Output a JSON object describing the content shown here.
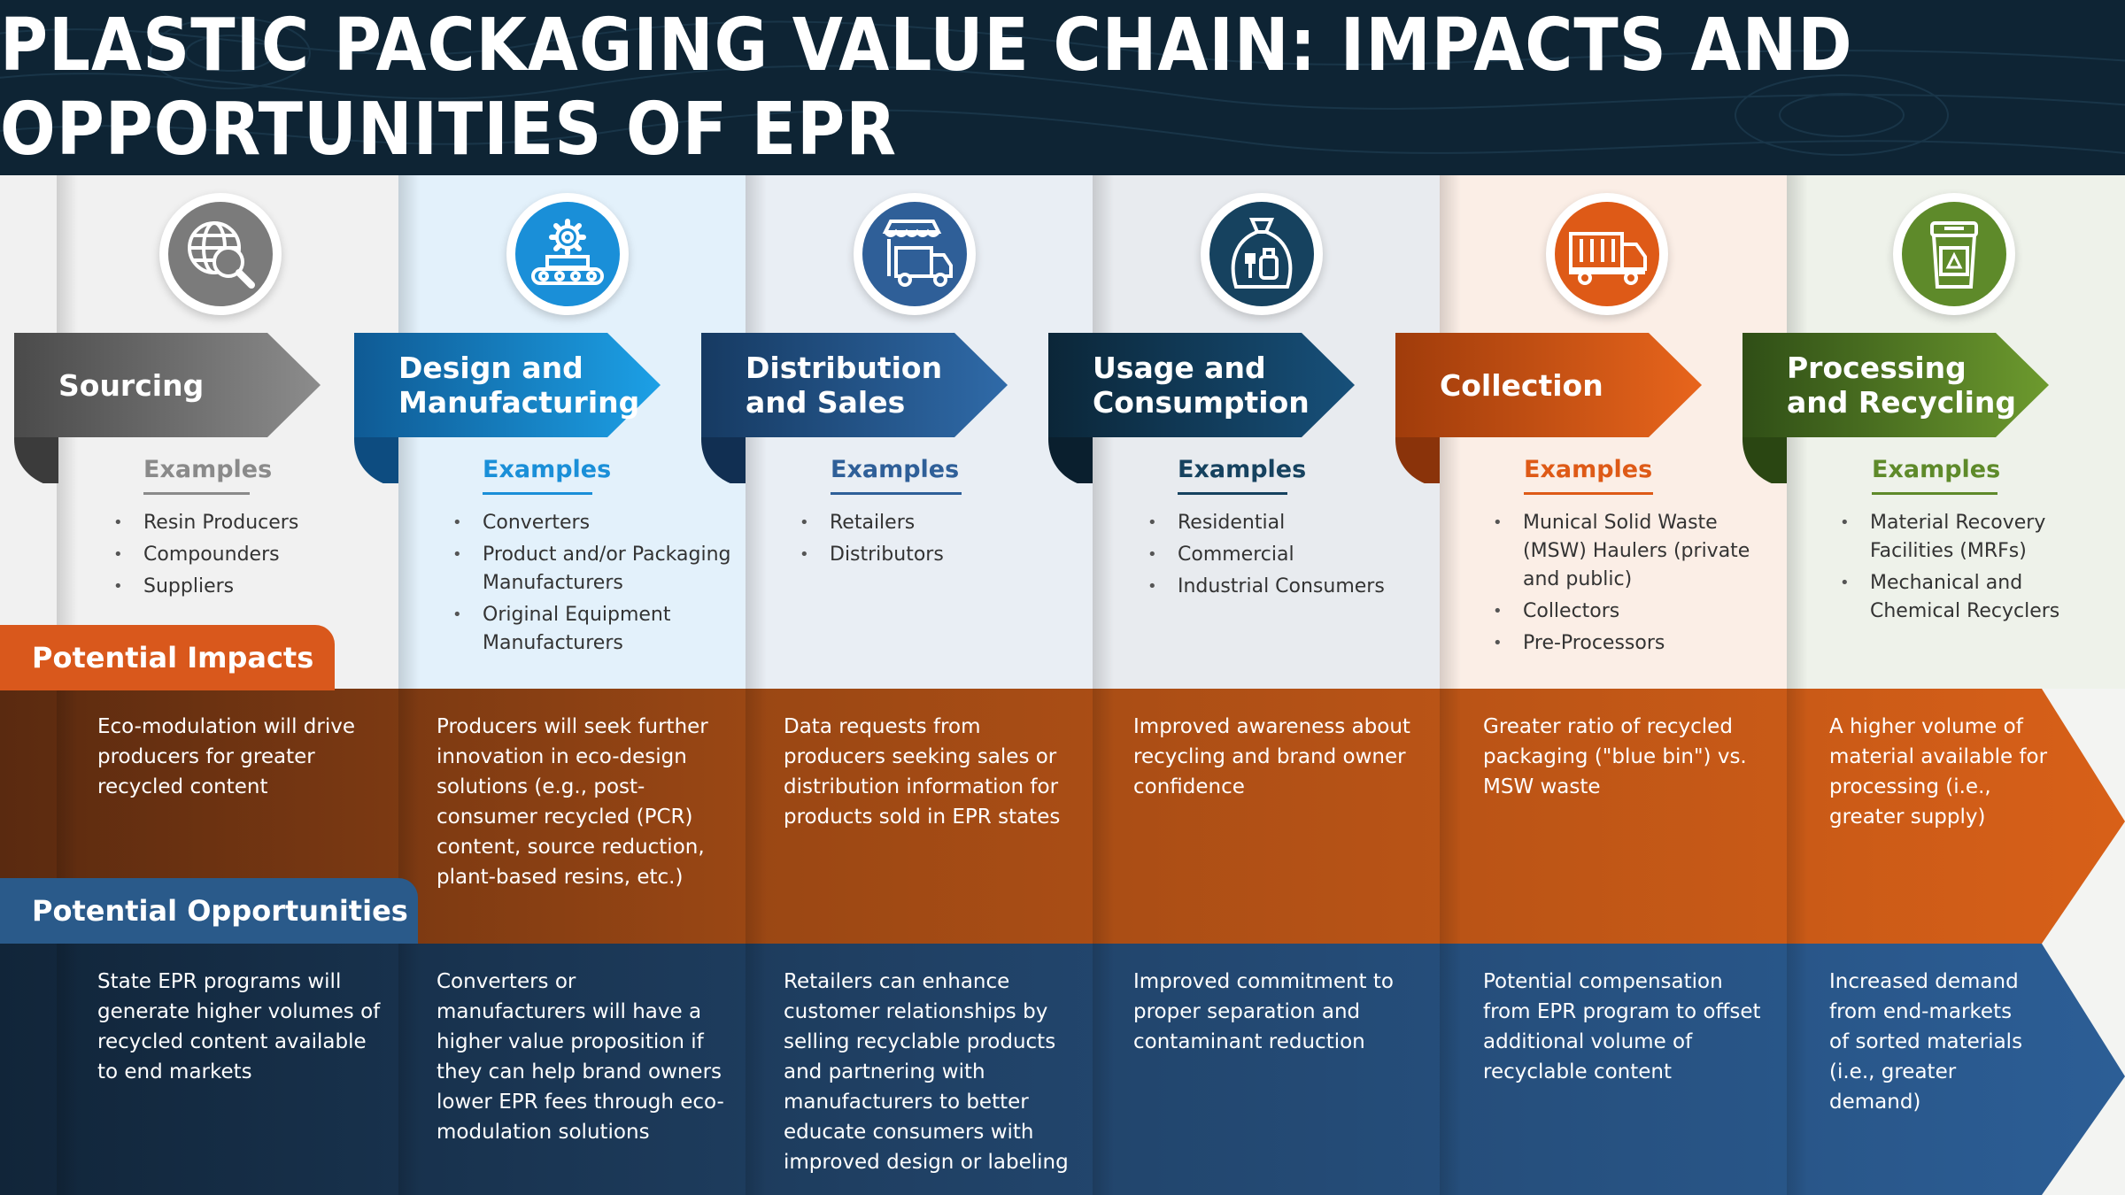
{
  "title": "PLASTIC PACKAGING VALUE CHAIN: IMPACTS AND OPPORTUNITIES OF EPR",
  "colors": {
    "header_bg": "#0e2434",
    "impacts_band": "#b95113",
    "opportunities_band": "#24486f",
    "impacts_tab": "#d9581c",
    "opportunities_tab": "#2a5a8a"
  },
  "labels": {
    "potential_impacts": "Potential Impacts",
    "potential_opportunities": "Potential Opportunities"
  },
  "stages": [
    {
      "name": "Sourcing",
      "icon": "globe-magnifier-icon",
      "accent": "#7b7b7b",
      "examples_title": "Examples",
      "examples": [
        "Resin Producers",
        "Compounders",
        "Suppliers"
      ],
      "impact": "Eco-modulation will drive producers for greater recycled content",
      "opportunity": "State EPR programs will generate higher volumes of recycled content available to end markets"
    },
    {
      "name": "Design and\nManufacturing",
      "icon": "gear-conveyor-icon",
      "accent": "#1a8fd8",
      "examples_title": "Examples",
      "examples": [
        "Converters",
        "Product and/or Packaging Manufacturers",
        "Original Equipment Manufacturers"
      ],
      "impact": "Producers will seek further innovation in eco-design solutions (e.g., post-consumer recycled (PCR) content, source reduction, plant-based resins, etc.)",
      "opportunity": "Converters or manufacturers will have a higher value proposition if they can help brand owners lower EPR fees through eco-modulation solutions"
    },
    {
      "name": "Distribution\nand Sales",
      "icon": "store-truck-icon",
      "accent": "#2f5f98",
      "examples_title": "Examples",
      "examples": [
        "Retailers",
        "Distributors"
      ],
      "impact": "Data requests from producers seeking sales or distribution information for products sold in EPR states",
      "opportunity": "Retailers can enhance customer relationships by selling recyclable products and partnering with manufacturers to better educate consumers with improved design or labeling"
    },
    {
      "name": "Usage and\nConsumption",
      "icon": "trash-bag-icon",
      "accent": "#16425f",
      "examples_title": "Examples",
      "examples": [
        "Residential",
        "Commercial",
        "Industrial Consumers"
      ],
      "impact": "Improved awareness about recycling and brand owner confidence",
      "opportunity": "Improved commitment to proper separation and contaminant reduction"
    },
    {
      "name": "Collection",
      "icon": "garbage-truck-icon",
      "accent": "#de5a17",
      "examples_title": "Examples",
      "examples": [
        "Munical Solid Waste (MSW) Haulers (private and public)",
        "Collectors",
        "Pre-Processors"
      ],
      "impact": "Greater ratio of recycled packaging (\"blue bin\") vs. MSW waste",
      "opportunity": "Potential compensation from EPR program to offset additional volume of recyclable content"
    },
    {
      "name": "Processing\nand Recycling",
      "icon": "recycling-bin-icon",
      "accent": "#5e8a2a",
      "examples_title": "Examples",
      "examples": [
        "Material Recovery Facilities (MRFs)",
        "Mechanical and Chemical Recyclers"
      ],
      "impact": "A higher volume of material available for processing (i.e., greater supply)",
      "opportunity": "Increased demand from end-markets of sorted materials (i.e., greater demand)"
    }
  ]
}
